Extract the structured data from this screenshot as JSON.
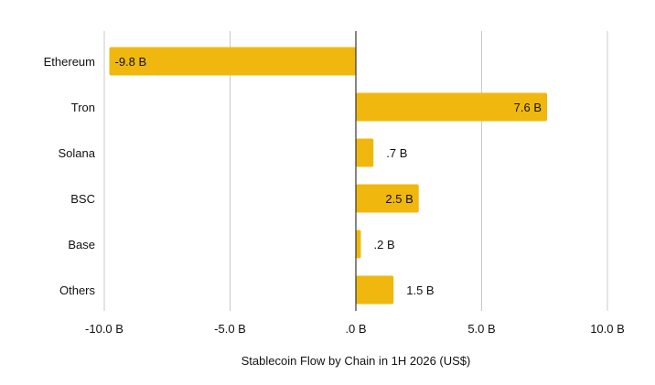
{
  "chart_data": {
    "type": "bar",
    "orientation": "horizontal",
    "categories": [
      "Ethereum",
      "Tron",
      "Solana",
      "BSC",
      "Base",
      "Others"
    ],
    "values": [
      -9.8,
      7.6,
      0.7,
      2.5,
      0.2,
      1.5
    ],
    "value_labels": [
      "-9.8 B",
      "7.6 B",
      ".7 B",
      "2.5 B",
      ".2 B",
      "1.5 B"
    ],
    "xlim": [
      -10.0,
      10.0
    ],
    "xticks": [
      -10.0,
      -5.0,
      0.0,
      5.0,
      10.0
    ],
    "xtick_labels": [
      "-10.0 B",
      "-5.0 B",
      ".0 B",
      "5.0 B",
      "10.0 B"
    ],
    "xlabel": "Stablecoin Flow by Chain in 1H 2026 (US$)",
    "ylabel": "",
    "title": "",
    "grid": "vertical",
    "legend": "none",
    "bar_color": "#F0B80F"
  }
}
